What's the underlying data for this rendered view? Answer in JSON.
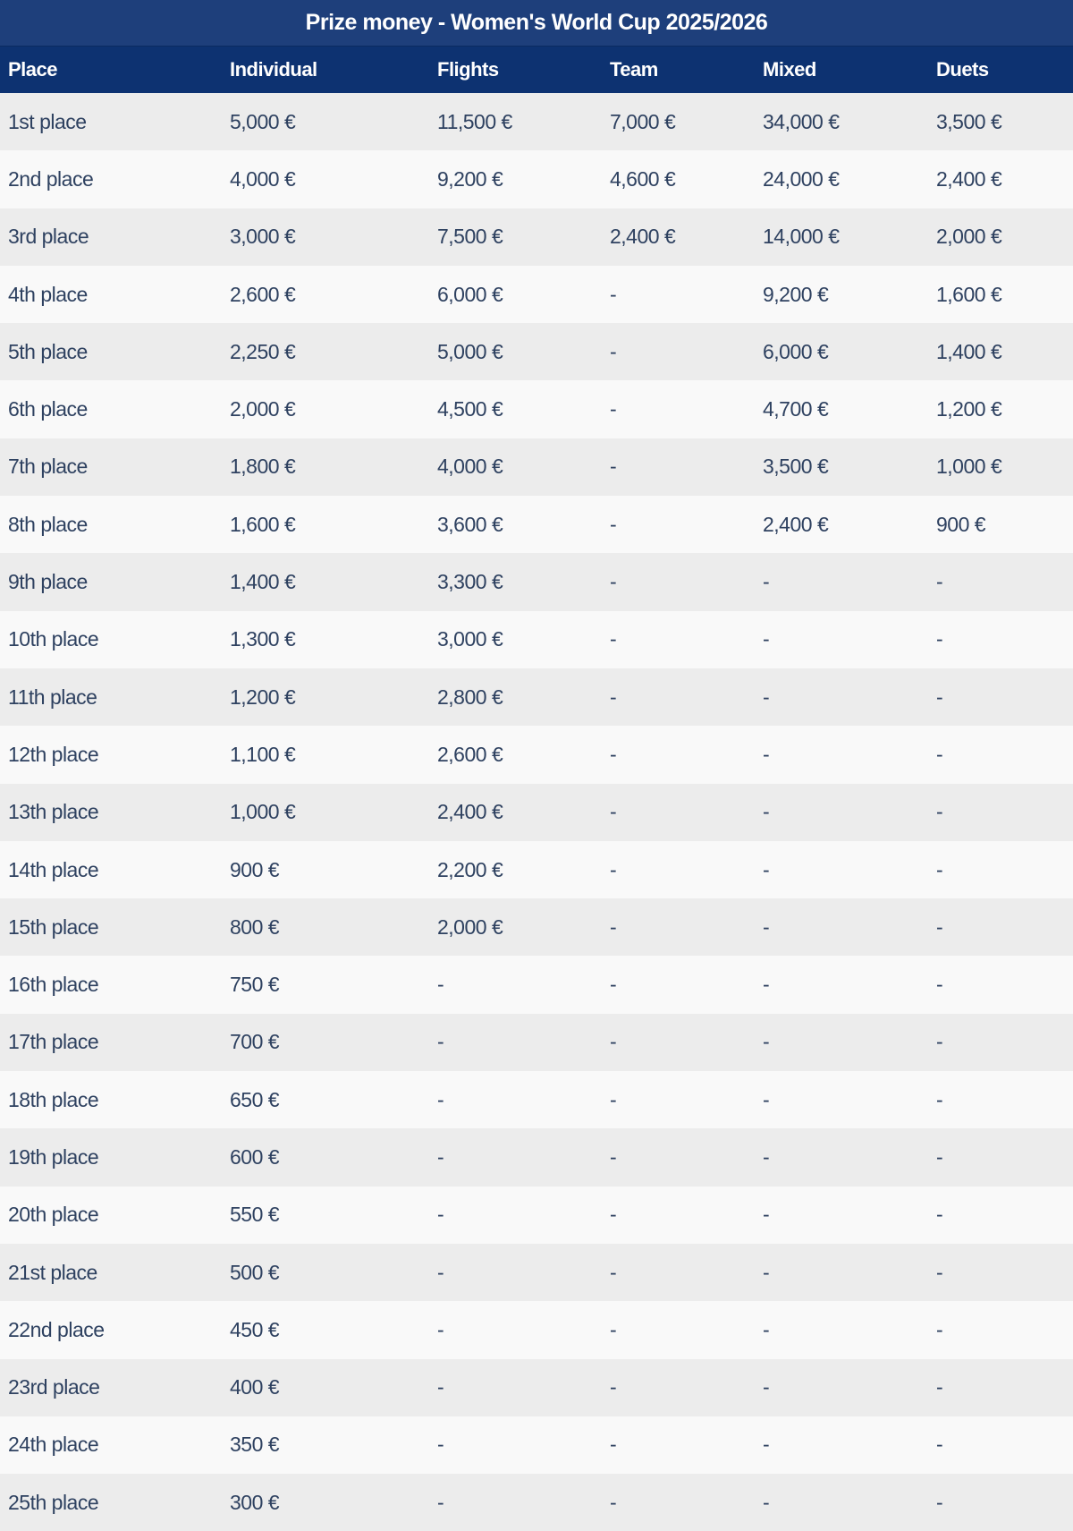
{
  "title": "Prize money - Women's World Cup 2025/2026",
  "colors": {
    "title_bg": "#1e3f7b",
    "header_bg": "#0d3271",
    "row_odd": "#ececec",
    "row_even": "#f9f9f9",
    "text": "#2e4160"
  },
  "columns": [
    "Place",
    "Individual",
    "Flights",
    "Team",
    "Mixed",
    "Duets"
  ],
  "rows": [
    [
      "1st place",
      "5,000 €",
      "11,500 €",
      "7,000 €",
      "34,000 €",
      "3,500 €"
    ],
    [
      "2nd place",
      "4,000 €",
      "9,200 €",
      "4,600 €",
      "24,000 €",
      "2,400 €"
    ],
    [
      "3rd place",
      "3,000 €",
      "7,500 €",
      "2,400 €",
      "14,000 €",
      "2,000 €"
    ],
    [
      "4th place",
      "2,600 €",
      "6,000 €",
      "-",
      "9,200 €",
      "1,600 €"
    ],
    [
      "5th place",
      "2,250 €",
      "5,000 €",
      "-",
      "6,000 €",
      "1,400 €"
    ],
    [
      "6th place",
      "2,000 €",
      "4,500 €",
      "-",
      "4,700 €",
      "1,200 €"
    ],
    [
      "7th place",
      "1,800 €",
      "4,000 €",
      "-",
      "3,500 €",
      "1,000 €"
    ],
    [
      "8th place",
      "1,600 €",
      "3,600 €",
      "-",
      "2,400 €",
      "900 €"
    ],
    [
      "9th place",
      "1,400 €",
      "3,300 €",
      "-",
      "-",
      "-"
    ],
    [
      "10th place",
      "1,300 €",
      "3,000 €",
      "-",
      "-",
      "-"
    ],
    [
      "11th place",
      "1,200 €",
      "2,800 €",
      "-",
      "-",
      "-"
    ],
    [
      "12th place",
      "1,100 €",
      "2,600 €",
      "-",
      "-",
      "-"
    ],
    [
      "13th place",
      "1,000 €",
      "2,400 €",
      "-",
      "-",
      "-"
    ],
    [
      "14th place",
      "900 €",
      "2,200 €",
      "-",
      "-",
      "-"
    ],
    [
      "15th place",
      "800 €",
      "2,000 €",
      "-",
      "-",
      "-"
    ],
    [
      "16th place",
      "750 €",
      "-",
      "-",
      "-",
      "-"
    ],
    [
      "17th place",
      "700 €",
      "-",
      "-",
      "-",
      "-"
    ],
    [
      "18th place",
      "650 €",
      "-",
      "-",
      "-",
      "-"
    ],
    [
      "19th place",
      "600 €",
      "-",
      "-",
      "-",
      "-"
    ],
    [
      "20th place",
      "550 €",
      "-",
      "-",
      "-",
      "-"
    ],
    [
      "21st place",
      "500 €",
      "-",
      "-",
      "-",
      "-"
    ],
    [
      "22nd place",
      "450 €",
      "-",
      "-",
      "-",
      "-"
    ],
    [
      "23rd place",
      "400 €",
      "-",
      "-",
      "-",
      "-"
    ],
    [
      "24th place",
      "350 €",
      "-",
      "-",
      "-",
      "-"
    ],
    [
      "25th place",
      "300 €",
      "-",
      "-",
      "-",
      "-"
    ]
  ]
}
